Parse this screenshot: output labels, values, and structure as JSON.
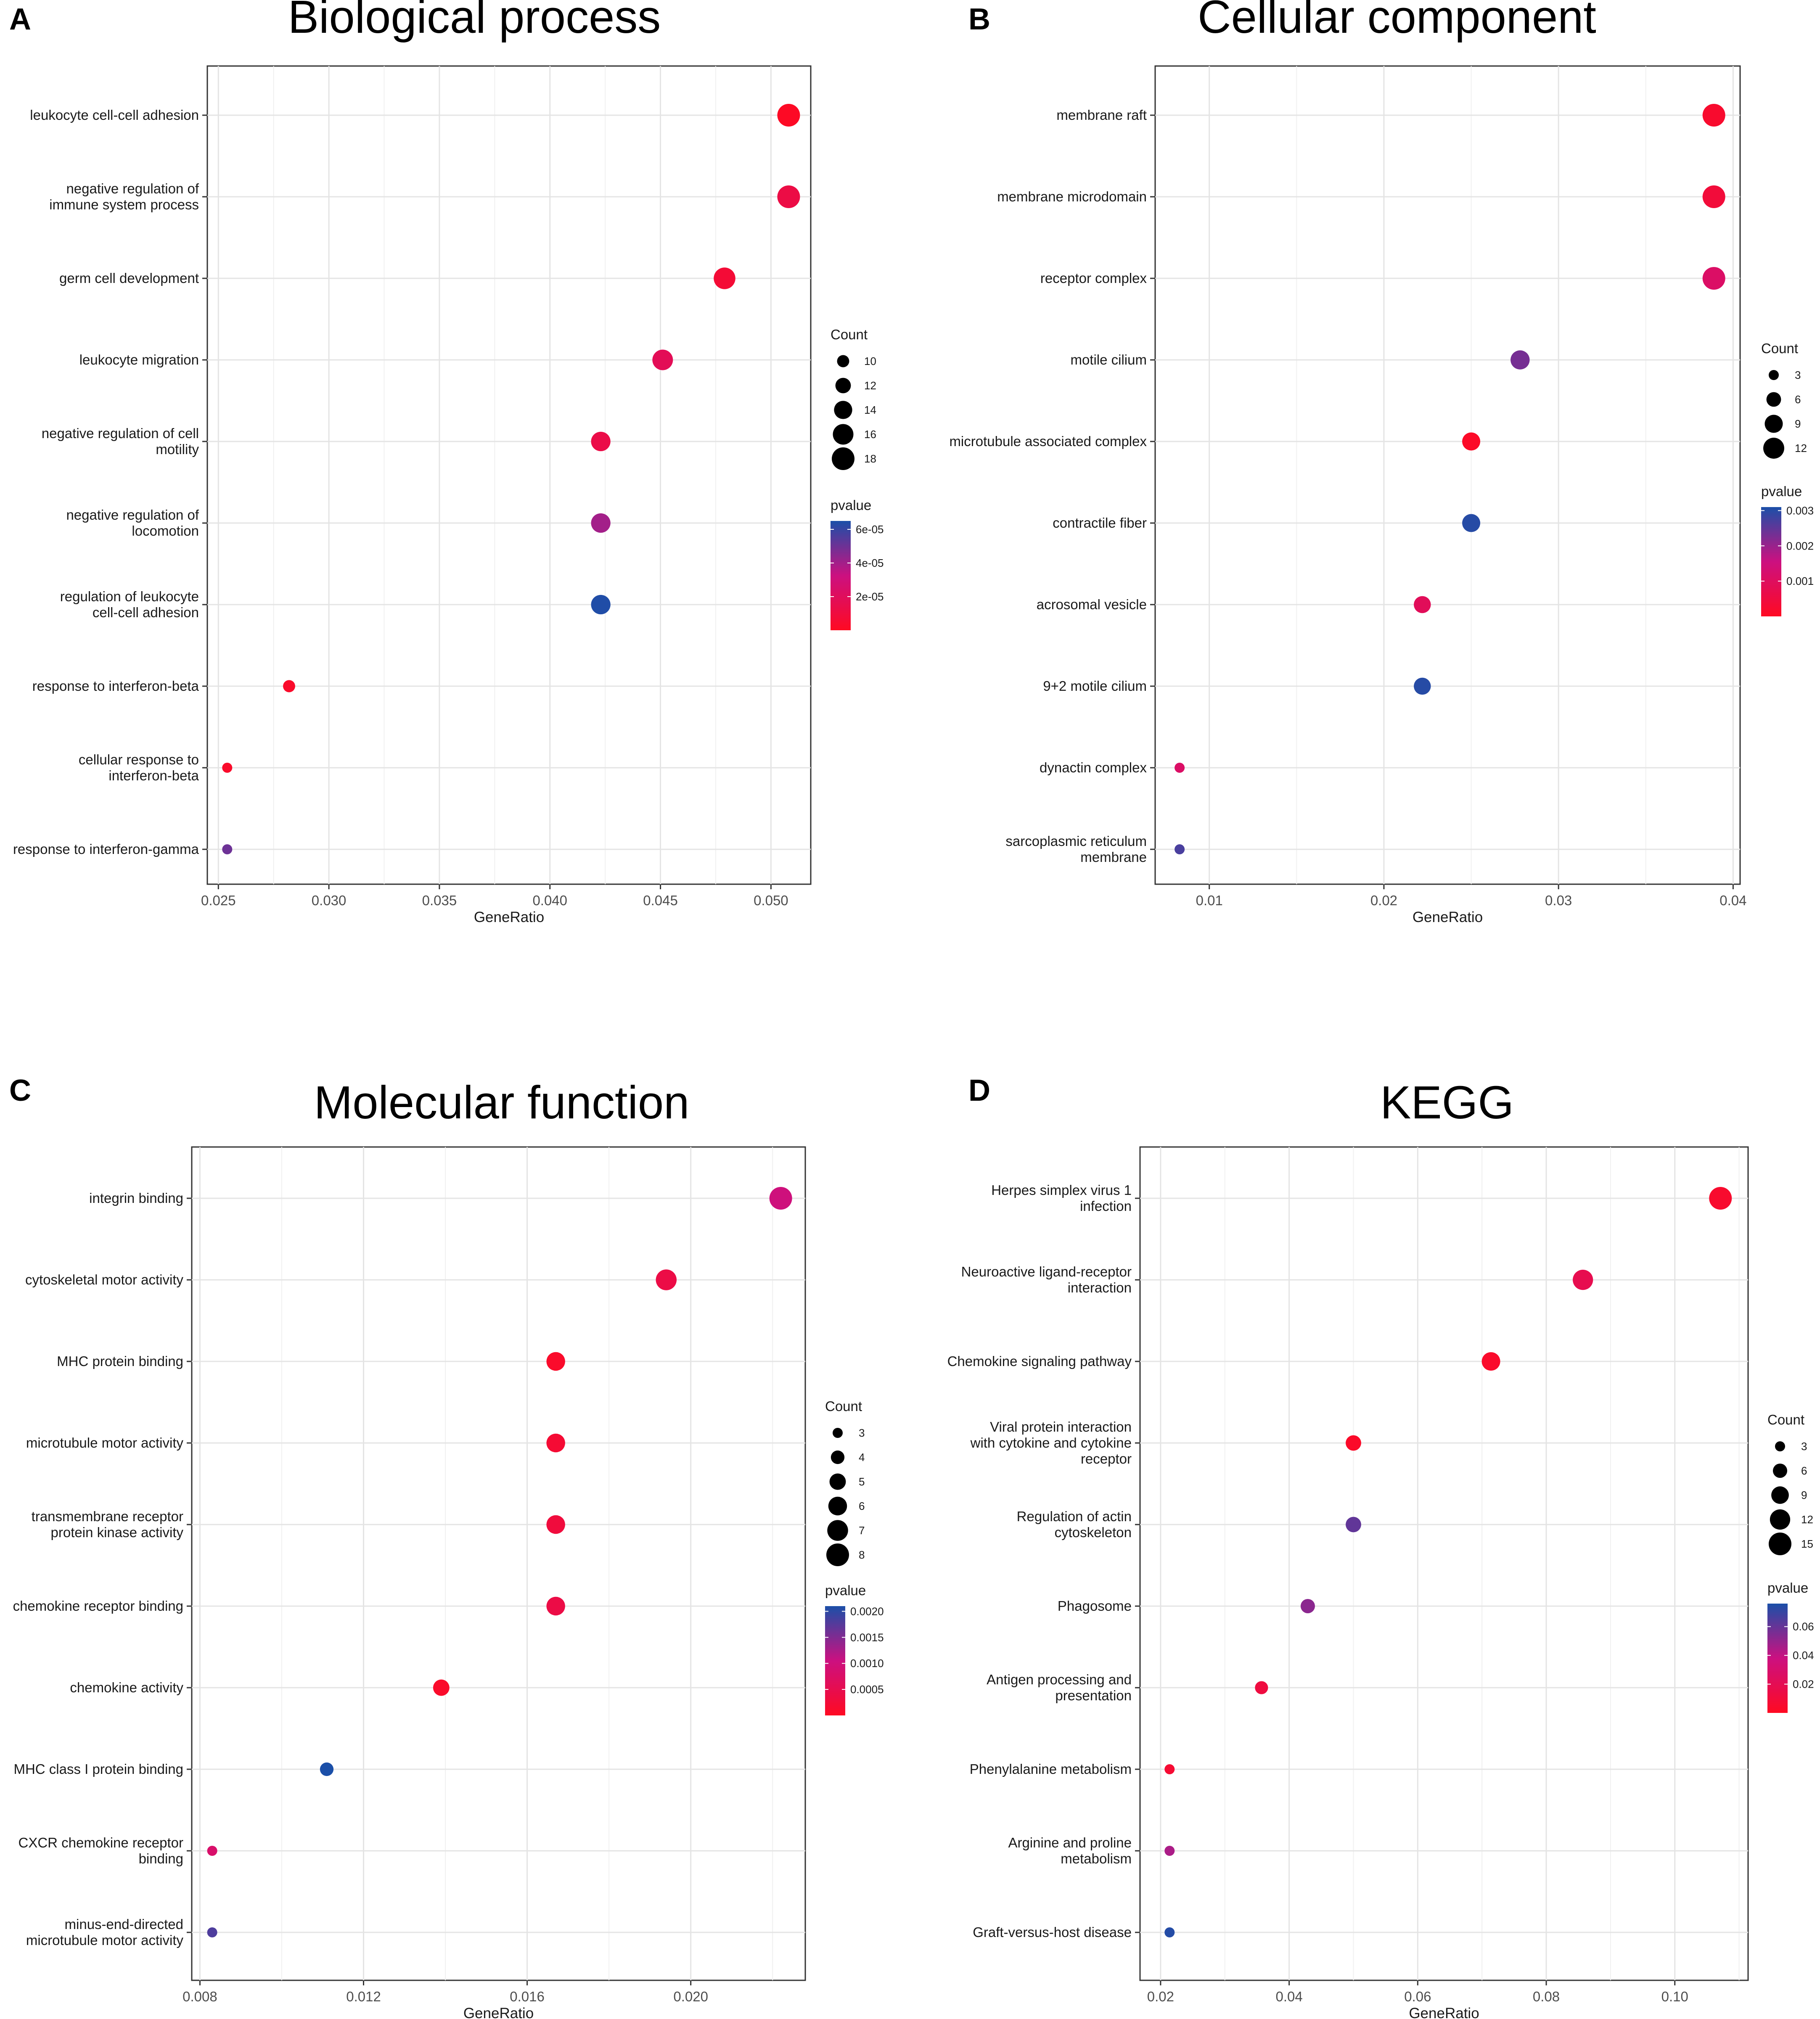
{
  "figure": {
    "panels": [
      "A",
      "B",
      "C",
      "D"
    ]
  },
  "chart_data": [
    {
      "panel_letter": "A",
      "type": "scatter",
      "title": "Biological process",
      "xlabel": "GeneRatio",
      "ylabel": "",
      "xlim": [
        0.0245,
        0.0518
      ],
      "xticks": [
        0.025,
        0.03,
        0.035,
        0.04,
        0.045,
        0.05
      ],
      "xtick_labels": [
        "0.025",
        "0.030",
        "0.035",
        "0.040",
        "0.045",
        "0.050"
      ],
      "categories": [
        [
          "leukocyte cell-cell adhesion"
        ],
        [
          "negative regulation of",
          "immune system process"
        ],
        [
          "germ cell development"
        ],
        [
          "leukocyte migration"
        ],
        [
          "negative regulation of cell",
          "motility"
        ],
        [
          "negative regulation of",
          "locomotion"
        ],
        [
          "regulation of leukocyte",
          "cell-cell adhesion"
        ],
        [
          "response to interferon-beta"
        ],
        [
          "cellular response to",
          "interferon-beta"
        ],
        [
          "response to interferon-gamma"
        ]
      ],
      "x": [
        0.0508,
        0.0508,
        0.0479,
        0.0451,
        0.0423,
        0.0423,
        0.0423,
        0.0282,
        0.0254,
        0.0254
      ],
      "count": [
        18,
        18,
        17,
        16,
        15,
        15,
        15,
        10,
        9,
        9
      ],
      "pvalue": [
        1e-06,
        1.2e-05,
        7e-06,
        1.8e-05,
        1.3e-05,
        4e-05,
        6.4e-05,
        3e-06,
        3e-06,
        5e-05
      ],
      "legend": {
        "size_title": "Count",
        "size_values": [
          10,
          12,
          14,
          16,
          18
        ],
        "size_labels": [
          "10",
          "12",
          "14",
          "16",
          "18"
        ],
        "color_title": "pvalue",
        "color_range": [
          0,
          6.5e-05
        ],
        "color_ticks": [
          2e-05,
          4e-05,
          6e-05
        ],
        "color_tick_labels": [
          "2e-05",
          "4e-05",
          "6e-05"
        ],
        "color_low": "#ff0a22",
        "color_mid": "#cc1080",
        "color_high": "#1b4fa8"
      }
    },
    {
      "panel_letter": "B",
      "type": "scatter",
      "title": "Cellular component",
      "xlabel": "GeneRatio",
      "ylabel": "",
      "xlim": [
        0.0069,
        0.0404
      ],
      "xticks": [
        0.01,
        0.02,
        0.03,
        0.04
      ],
      "xtick_labels": [
        "0.01",
        "0.02",
        "0.03",
        "0.04"
      ],
      "categories": [
        [
          "membrane raft"
        ],
        [
          "membrane microdomain"
        ],
        [
          "receptor complex"
        ],
        [
          "motile cilium"
        ],
        [
          "microtubule associated complex"
        ],
        [
          "contractile fiber"
        ],
        [
          "acrosomal vesicle"
        ],
        [
          "9+2 motile cilium"
        ],
        [
          "dynactin complex"
        ],
        [
          "sarcoplasmic reticulum",
          "membrane"
        ]
      ],
      "x": [
        0.0389,
        0.0389,
        0.0389,
        0.0278,
        0.025,
        0.025,
        0.0222,
        0.0222,
        0.0083,
        0.0083
      ],
      "count": [
        14,
        14,
        14,
        10,
        9,
        9,
        8,
        8,
        3,
        3
      ],
      "pvalue": [
        0.0002,
        0.0004,
        0.0011,
        0.0023,
        0.0001,
        0.003,
        0.0009,
        0.003,
        0.0011,
        0.0027
      ],
      "legend": {
        "size_title": "Count",
        "size_values": [
          3,
          6,
          9,
          12
        ],
        "size_labels": [
          "3",
          "6",
          "9",
          "12"
        ],
        "color_title": "pvalue",
        "color_range": [
          0,
          0.0031
        ],
        "color_ticks": [
          0.001,
          0.002,
          0.003
        ],
        "color_tick_labels": [
          "0.001",
          "0.002",
          "0.003"
        ],
        "color_low": "#ff0a22",
        "color_mid": "#cc1080",
        "color_high": "#1b4fa8"
      }
    },
    {
      "panel_letter": "C",
      "type": "scatter",
      "title": "Molecular function",
      "xlabel": "GeneRatio",
      "ylabel": "",
      "xlim": [
        0.0078,
        0.0228
      ],
      "xticks": [
        0.008,
        0.012,
        0.016,
        0.02
      ],
      "xtick_labels": [
        "0.008",
        "0.012",
        "0.016",
        "0.020"
      ],
      "categories": [
        [
          "integrin binding"
        ],
        [
          "cytoskeletal motor activity"
        ],
        [
          "MHC protein binding"
        ],
        [
          "microtubule motor activity"
        ],
        [
          "transmembrane receptor",
          "protein kinase activity"
        ],
        [
          "chemokine receptor binding"
        ],
        [
          "chemokine activity"
        ],
        [
          "MHC class I protein binding"
        ],
        [
          "CXCR chemokine receptor",
          "binding"
        ],
        [
          "minus-end-directed",
          "microtubule motor activity"
        ]
      ],
      "x": [
        0.0222,
        0.0194,
        0.0167,
        0.0167,
        0.0167,
        0.0167,
        0.0139,
        0.0111,
        0.0083,
        0.0083
      ],
      "count": [
        8,
        7,
        6,
        6,
        6,
        6,
        5,
        4,
        3,
        3
      ],
      "pvalue": [
        0.001,
        0.0004,
        0.0001,
        0.0002,
        0.0003,
        0.0004,
        0.0001,
        0.0021,
        0.0008,
        0.0018
      ],
      "legend": {
        "size_title": "Count",
        "size_values": [
          3,
          4,
          5,
          6,
          7,
          8
        ],
        "size_labels": [
          "3",
          "4",
          "5",
          "6",
          "7",
          "8"
        ],
        "color_title": "pvalue",
        "color_range": [
          0,
          0.0021
        ],
        "color_ticks": [
          0.0005,
          0.001,
          0.0015,
          0.002
        ],
        "color_tick_labels": [
          "0.0005",
          "0.0010",
          "0.0015",
          "0.0020"
        ],
        "color_low": "#ff0a22",
        "color_mid": "#cc1080",
        "color_high": "#1b4fa8"
      }
    },
    {
      "panel_letter": "D",
      "type": "scatter",
      "title": "KEGG",
      "xlabel": "GeneRatio",
      "ylabel": "",
      "xlim": [
        0.0168,
        0.1114
      ],
      "xticks": [
        0.02,
        0.04,
        0.06,
        0.08,
        0.1
      ],
      "xtick_labels": [
        "0.02",
        "0.04",
        "0.06",
        "0.08",
        "0.10"
      ],
      "categories": [
        [
          "Herpes simplex virus 1",
          "infection"
        ],
        [
          "Neuroactive ligand-receptor",
          "interaction"
        ],
        [
          "Chemokine signaling pathway"
        ],
        [
          "Viral protein interaction",
          "with cytokine and cytokine",
          "receptor"
        ],
        [
          "Regulation of actin",
          "cytoskeleton"
        ],
        [
          "Phagosome"
        ],
        [
          "Antigen processing and",
          "presentation"
        ],
        [
          "Phenylalanine metabolism"
        ],
        [
          "Arginine and proline",
          "metabolism"
        ],
        [
          "Graft-versus-host disease"
        ]
      ],
      "x": [
        0.1071,
        0.0857,
        0.0714,
        0.05,
        0.05,
        0.0429,
        0.0357,
        0.0214,
        0.0214,
        0.0214
      ],
      "count": [
        15,
        12,
        10,
        7,
        7,
        6,
        5,
        3,
        3,
        3
      ],
      "pvalue": [
        0.005,
        0.018,
        0.004,
        0.003,
        0.061,
        0.052,
        0.012,
        0.007,
        0.045,
        0.074
      ],
      "legend": {
        "size_title": "Count",
        "size_values": [
          3,
          6,
          9,
          12,
          15
        ],
        "size_labels": [
          "3",
          "6",
          "9",
          "12",
          "15"
        ],
        "color_title": "pvalue",
        "color_range": [
          0,
          0.076
        ],
        "color_ticks": [
          0.02,
          0.04,
          0.06
        ],
        "color_tick_labels": [
          "0.02",
          "0.04",
          "0.06"
        ],
        "color_low": "#ff0a22",
        "color_mid": "#cc1080",
        "color_high": "#1b4fa8"
      }
    }
  ]
}
